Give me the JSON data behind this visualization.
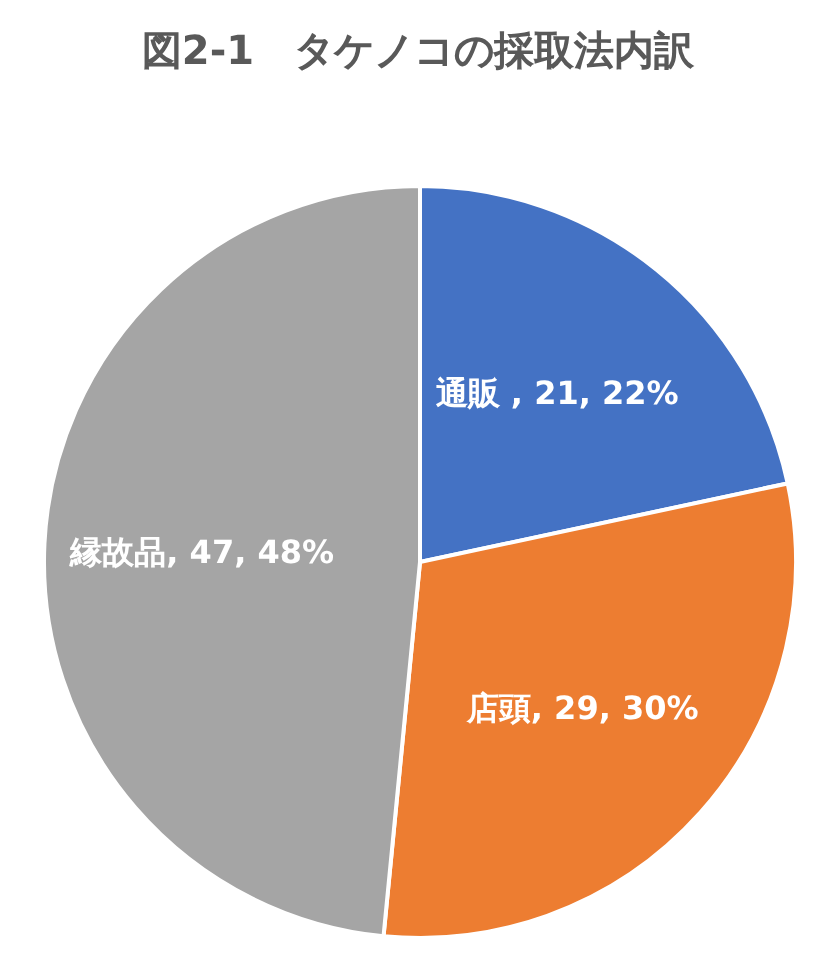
{
  "chart_data": {
    "type": "pie",
    "title": "図2-1　タケノコの採取法内訳",
    "categories": [
      "通販 ",
      "店頭",
      "縁故品"
    ],
    "values": [
      21,
      29,
      47
    ],
    "colors": [
      "#4472c4",
      "#ed7d31",
      "#a5a5a5"
    ],
    "value_labels": [
      "21, 22%",
      "29, 30%",
      "47, 48%"
    ],
    "legend": false
  }
}
